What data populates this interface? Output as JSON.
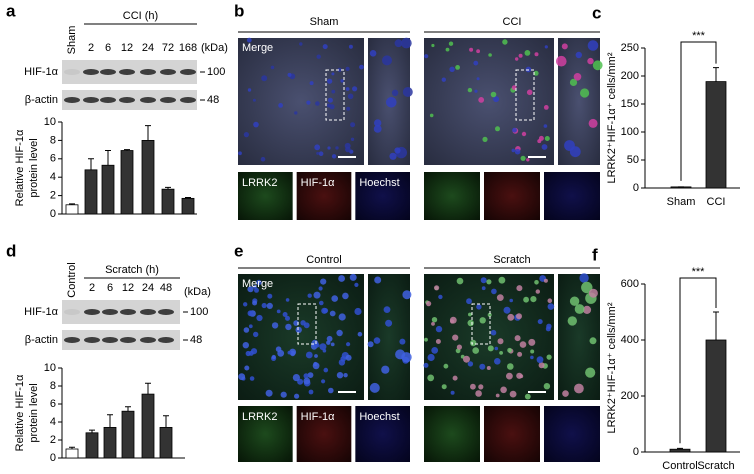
{
  "chart_data": [
    {
      "type": "bar",
      "categories": [
        "Sham",
        "2",
        "6",
        "12",
        "24",
        "72",
        "168"
      ],
      "group_label": "CCI (h)",
      "ylabel": [
        "Relative HIF-1α",
        "protein level"
      ],
      "values": [
        1.0,
        4.8,
        5.3,
        6.9,
        8.0,
        2.7,
        1.7
      ],
      "errors": [
        0.1,
        1.2,
        1.6,
        0.1,
        1.6,
        0.2,
        0.1
      ],
      "colors": [
        "#ffffff",
        "#333333",
        "#333333",
        "#333333",
        "#333333",
        "#333333",
        "#333333"
      ],
      "ylim": [
        0,
        10
      ],
      "yticks": [
        0,
        2,
        4,
        6,
        8,
        10
      ]
    },
    {
      "type": "bar",
      "categories": [
        "Sham",
        "CCI"
      ],
      "ylabel": [
        "LRRK2⁺HIF-1α⁺ cells/mm²"
      ],
      "values": [
        2,
        190
      ],
      "errors": [
        0,
        25
      ],
      "colors": [
        "#333333",
        "#333333"
      ],
      "ylim": [
        0,
        250
      ],
      "yticks": [
        0,
        50,
        100,
        150,
        200,
        250
      ],
      "annotation": "***"
    },
    {
      "type": "bar",
      "categories": [
        "Control",
        "2",
        "6",
        "12",
        "24",
        "48"
      ],
      "group_label": "Scratch (h)",
      "ylabel": [
        "Relative HIF-1α",
        "protein level"
      ],
      "values": [
        1.0,
        2.8,
        3.4,
        5.2,
        7.1,
        3.4
      ],
      "errors": [
        0.2,
        0.3,
        1.4,
        0.5,
        1.2,
        1.3
      ],
      "colors": [
        "#ffffff",
        "#333333",
        "#333333",
        "#333333",
        "#333333",
        "#333333"
      ],
      "ylim": [
        0,
        10
      ],
      "yticks": [
        0,
        2,
        4,
        6,
        8,
        10
      ]
    },
    {
      "type": "bar",
      "categories": [
        "Control",
        "Scratch"
      ],
      "ylabel": [
        "LRRK2⁺HIF-1α⁺ cells/mm²"
      ],
      "values": [
        10,
        400
      ],
      "errors": [
        3,
        100
      ],
      "colors": [
        "#333333",
        "#333333"
      ],
      "ylim": [
        0,
        600
      ],
      "yticks": [
        0,
        200,
        400,
        600
      ],
      "annotation": "***"
    }
  ],
  "figure": {
    "panels": [
      "a",
      "b",
      "c",
      "d",
      "e",
      "f"
    ],
    "blots": [
      {
        "kda": "(kDa)",
        "rows": [
          {
            "label": "HIF-1α",
            "mw": "100"
          },
          {
            "label": "β-actin",
            "mw": "48"
          }
        ]
      },
      {
        "kda": "(kDa)",
        "rows": [
          {
            "label": "HIF-1α",
            "mw": "100"
          },
          {
            "label": "β-actin",
            "mw": "48"
          }
        ]
      }
    ],
    "images": [
      {
        "groups": [
          "Sham",
          "CCI"
        ],
        "merge": "Merge",
        "channels": [
          "LRRK2",
          "HIF-1α",
          "Hoechst"
        ]
      },
      {
        "groups": [
          "Control",
          "Scratch"
        ],
        "merge": "Merge",
        "channels": [
          "LRRK2",
          "HIF-1α",
          "Hoechst"
        ]
      }
    ]
  }
}
